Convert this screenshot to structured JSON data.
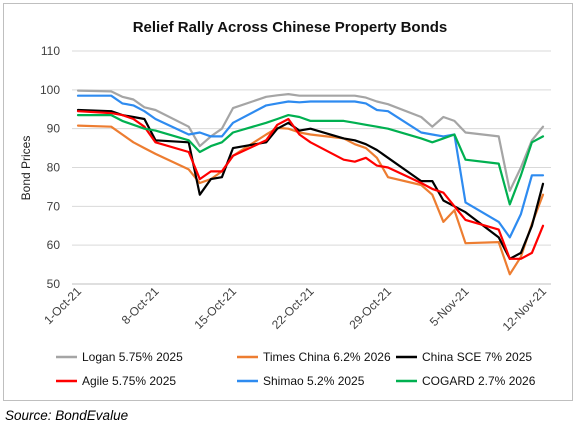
{
  "chart_data": {
    "type": "line",
    "title": "Relief Rally Across Chinese Property Bonds",
    "xlabel": "",
    "ylabel": "Bond Prices",
    "ylim": [
      50,
      110
    ],
    "yticks": [
      50,
      60,
      70,
      80,
      90,
      100,
      110
    ],
    "xticks": [
      "1-Oct-21",
      "8-Oct-21",
      "15-Oct-21",
      "22-Oct-21",
      "29-Oct-21",
      "5-Nov-21",
      "12-Nov-21"
    ],
    "grid": "horizontal",
    "legend_position": "bottom",
    "series": [
      {
        "name": "Logan 5.75% 2025",
        "color": "#A5A5A5",
        "points": [
          [
            "1-Oct-21",
            99.8
          ],
          [
            "4-Oct-21",
            99.6
          ],
          [
            "5-Oct-21",
            98.2
          ],
          [
            "6-Oct-21",
            97.5
          ],
          [
            "7-Oct-21",
            95.5
          ],
          [
            "8-Oct-21",
            94.8
          ],
          [
            "11-Oct-21",
            90.5
          ],
          [
            "12-Oct-21",
            85.5
          ],
          [
            "13-Oct-21",
            88.0
          ],
          [
            "14-Oct-21",
            90.0
          ],
          [
            "15-Oct-21",
            95.3
          ],
          [
            "18-Oct-21",
            98.2
          ],
          [
            "19-Oct-21",
            98.6
          ],
          [
            "20-Oct-21",
            98.9
          ],
          [
            "21-Oct-21",
            98.5
          ],
          [
            "22-Oct-21",
            98.5
          ],
          [
            "25-Oct-21",
            98.5
          ],
          [
            "26-Oct-21",
            98.5
          ],
          [
            "27-Oct-21",
            98.0
          ],
          [
            "28-Oct-21",
            97.0
          ],
          [
            "29-Oct-21",
            96.3
          ],
          [
            "1-Nov-21",
            93.0
          ],
          [
            "2-Nov-21",
            90.5
          ],
          [
            "3-Nov-21",
            93.0
          ],
          [
            "4-Nov-21",
            92.0
          ],
          [
            "5-Nov-21",
            89.0
          ],
          [
            "8-Nov-21",
            88.0
          ],
          [
            "9-Nov-21",
            74.0
          ],
          [
            "10-Nov-21",
            80.0
          ],
          [
            "11-Nov-21",
            87.0
          ],
          [
            "12-Nov-21",
            90.5
          ]
        ]
      },
      {
        "name": "Times China 6.2% 2026",
        "color": "#ED7D31",
        "points": [
          [
            "1-Oct-21",
            90.8
          ],
          [
            "4-Oct-21",
            90.5
          ],
          [
            "5-Oct-21",
            88.5
          ],
          [
            "6-Oct-21",
            86.5
          ],
          [
            "7-Oct-21",
            85.0
          ],
          [
            "8-Oct-21",
            83.5
          ],
          [
            "11-Oct-21",
            79.5
          ],
          [
            "12-Oct-21",
            76.0
          ],
          [
            "13-Oct-21",
            77.0
          ],
          [
            "14-Oct-21",
            79.0
          ],
          [
            "15-Oct-21",
            83.0
          ],
          [
            "18-Oct-21",
            88.5
          ],
          [
            "19-Oct-21",
            90.2
          ],
          [
            "20-Oct-21",
            90.0
          ],
          [
            "21-Oct-21",
            89.0
          ],
          [
            "22-Oct-21",
            88.5
          ],
          [
            "25-Oct-21",
            87.5
          ],
          [
            "26-Oct-21",
            86.0
          ],
          [
            "27-Oct-21",
            85.0
          ],
          [
            "28-Oct-21",
            82.5
          ],
          [
            "29-Oct-21",
            77.5
          ],
          [
            "1-Nov-21",
            75.5
          ],
          [
            "2-Nov-21",
            73.0
          ],
          [
            "3-Nov-21",
            66.0
          ],
          [
            "4-Nov-21",
            69.0
          ],
          [
            "5-Nov-21",
            60.5
          ],
          [
            "8-Nov-21",
            60.8
          ],
          [
            "9-Nov-21",
            52.5
          ],
          [
            "10-Nov-21",
            57.0
          ],
          [
            "11-Nov-21",
            65.5
          ],
          [
            "12-Nov-21",
            73.0
          ]
        ]
      },
      {
        "name": "China SCE 7% 2025",
        "color": "#000000",
        "points": [
          [
            "1-Oct-21",
            94.8
          ],
          [
            "4-Oct-21",
            94.5
          ],
          [
            "5-Oct-21",
            93.5
          ],
          [
            "6-Oct-21",
            93.0
          ],
          [
            "7-Oct-21",
            92.5
          ],
          [
            "8-Oct-21",
            87.0
          ],
          [
            "11-Oct-21",
            86.5
          ],
          [
            "12-Oct-21",
            73.0
          ],
          [
            "13-Oct-21",
            77.0
          ],
          [
            "14-Oct-21",
            77.5
          ],
          [
            "15-Oct-21",
            85.0
          ],
          [
            "18-Oct-21",
            86.5
          ],
          [
            "19-Oct-21",
            90.0
          ],
          [
            "20-Oct-21",
            91.5
          ],
          [
            "21-Oct-21",
            89.5
          ],
          [
            "22-Oct-21",
            90.0
          ],
          [
            "25-Oct-21",
            87.5
          ],
          [
            "26-Oct-21",
            87.0
          ],
          [
            "27-Oct-21",
            86.0
          ],
          [
            "28-Oct-21",
            84.5
          ],
          [
            "29-Oct-21",
            82.5
          ],
          [
            "1-Nov-21",
            76.5
          ],
          [
            "2-Nov-21",
            76.5
          ],
          [
            "3-Nov-21",
            71.5
          ],
          [
            "4-Nov-21",
            70.0
          ],
          [
            "5-Nov-21",
            68.5
          ],
          [
            "8-Nov-21",
            62.0
          ],
          [
            "9-Nov-21",
            56.5
          ],
          [
            "10-Nov-21",
            58.0
          ],
          [
            "11-Nov-21",
            65.0
          ],
          [
            "12-Nov-21",
            75.8
          ]
        ]
      },
      {
        "name": "Agile 5.75% 2025",
        "color": "#FF0000",
        "points": [
          [
            "1-Oct-21",
            94.5
          ],
          [
            "4-Oct-21",
            94.0
          ],
          [
            "5-Oct-21",
            93.5
          ],
          [
            "6-Oct-21",
            92.5
          ],
          [
            "7-Oct-21",
            90.5
          ],
          [
            "8-Oct-21",
            86.5
          ],
          [
            "11-Oct-21",
            84.0
          ],
          [
            "12-Oct-21",
            77.0
          ],
          [
            "13-Oct-21",
            79.0
          ],
          [
            "14-Oct-21",
            79.0
          ],
          [
            "15-Oct-21",
            83.0
          ],
          [
            "18-Oct-21",
            87.0
          ],
          [
            "19-Oct-21",
            91.0
          ],
          [
            "20-Oct-21",
            92.5
          ],
          [
            "21-Oct-21",
            88.5
          ],
          [
            "22-Oct-21",
            86.5
          ],
          [
            "25-Oct-21",
            82.0
          ],
          [
            "26-Oct-21",
            81.5
          ],
          [
            "27-Oct-21",
            82.5
          ],
          [
            "28-Oct-21",
            80.5
          ],
          [
            "29-Oct-21",
            80.0
          ],
          [
            "1-Nov-21",
            76.0
          ],
          [
            "2-Nov-21",
            74.5
          ],
          [
            "3-Nov-21",
            73.5
          ],
          [
            "4-Nov-21",
            70.0
          ],
          [
            "5-Nov-21",
            66.5
          ],
          [
            "8-Nov-21",
            64.0
          ],
          [
            "9-Nov-21",
            56.5
          ],
          [
            "10-Nov-21",
            56.5
          ],
          [
            "11-Nov-21",
            58.0
          ],
          [
            "12-Nov-21",
            65.0
          ]
        ]
      },
      {
        "name": "Shimao 5.2% 2025",
        "color": "#2E8BF0",
        "points": [
          [
            "1-Oct-21",
            98.5
          ],
          [
            "4-Oct-21",
            98.5
          ],
          [
            "5-Oct-21",
            96.5
          ],
          [
            "6-Oct-21",
            96.0
          ],
          [
            "7-Oct-21",
            94.5
          ],
          [
            "8-Oct-21",
            92.5
          ],
          [
            "11-Oct-21",
            88.5
          ],
          [
            "12-Oct-21",
            89.0
          ],
          [
            "13-Oct-21",
            88.0
          ],
          [
            "14-Oct-21",
            88.0
          ],
          [
            "15-Oct-21",
            91.5
          ],
          [
            "18-Oct-21",
            96.0
          ],
          [
            "19-Oct-21",
            96.5
          ],
          [
            "20-Oct-21",
            97.0
          ],
          [
            "21-Oct-21",
            96.8
          ],
          [
            "22-Oct-21",
            97.0
          ],
          [
            "25-Oct-21",
            97.0
          ],
          [
            "26-Oct-21",
            97.0
          ],
          [
            "27-Oct-21",
            96.5
          ],
          [
            "28-Oct-21",
            94.8
          ],
          [
            "29-Oct-21",
            94.5
          ],
          [
            "1-Nov-21",
            89.0
          ],
          [
            "2-Nov-21",
            88.5
          ],
          [
            "3-Nov-21",
            88.0
          ],
          [
            "4-Nov-21",
            88.5
          ],
          [
            "5-Nov-21",
            71.0
          ],
          [
            "8-Nov-21",
            66.0
          ],
          [
            "9-Nov-21",
            62.0
          ],
          [
            "10-Nov-21",
            68.0
          ],
          [
            "11-Nov-21",
            78.0
          ],
          [
            "12-Nov-21",
            78.0
          ]
        ]
      },
      {
        "name": "COGARD 2.7% 2026",
        "color": "#00B050",
        "points": [
          [
            "1-Oct-21",
            93.5
          ],
          [
            "4-Oct-21",
            93.5
          ],
          [
            "5-Oct-21",
            92.0
          ],
          [
            "6-Oct-21",
            91.0
          ],
          [
            "7-Oct-21",
            90.0
          ],
          [
            "8-Oct-21",
            89.5
          ],
          [
            "11-Oct-21",
            87.0
          ],
          [
            "12-Oct-21",
            84.0
          ],
          [
            "13-Oct-21",
            85.5
          ],
          [
            "14-Oct-21",
            86.5
          ],
          [
            "15-Oct-21",
            89.0
          ],
          [
            "18-Oct-21",
            91.5
          ],
          [
            "19-Oct-21",
            92.5
          ],
          [
            "20-Oct-21",
            93.5
          ],
          [
            "21-Oct-21",
            93.0
          ],
          [
            "22-Oct-21",
            92.0
          ],
          [
            "25-Oct-21",
            92.0
          ],
          [
            "26-Oct-21",
            91.5
          ],
          [
            "27-Oct-21",
            91.0
          ],
          [
            "28-Oct-21",
            90.5
          ],
          [
            "29-Oct-21",
            90.0
          ],
          [
            "1-Nov-21",
            87.5
          ],
          [
            "2-Nov-21",
            86.5
          ],
          [
            "3-Nov-21",
            87.5
          ],
          [
            "4-Nov-21",
            88.5
          ],
          [
            "5-Nov-21",
            82.0
          ],
          [
            "8-Nov-21",
            81.0
          ],
          [
            "9-Nov-21",
            70.5
          ],
          [
            "10-Nov-21",
            78.0
          ],
          [
            "11-Nov-21",
            86.5
          ],
          [
            "12-Nov-21",
            88.0
          ]
        ]
      }
    ]
  },
  "source_text": "Source: BondEvalue"
}
